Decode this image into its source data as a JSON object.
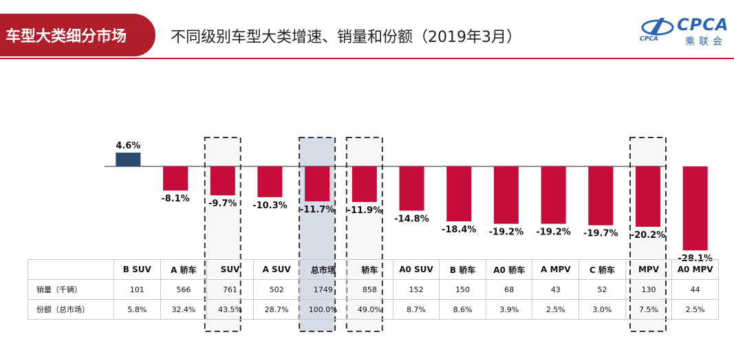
{
  "header": {
    "tag": "车型大类细分市场",
    "title": "不同级别车型大类增速、销量和份额（2019年3月）"
  },
  "logo": {
    "text_top": "CPCA",
    "text_bottom": "乘联会",
    "text_small": "CPCA"
  },
  "colors": {
    "brand_red": "#b01e2a",
    "positive_bar": "#2c4a6e",
    "negative_bar": "#c50c3a",
    "highlight_fill": "#d3d9e6"
  },
  "table": {
    "row_labels": [
      "销量（千辆）",
      "份额（总市场）"
    ]
  },
  "chart_data": {
    "type": "bar",
    "categories": [
      "B SUV",
      "A 轿车",
      "SUV",
      "A SUV",
      "总市场",
      "轿车",
      "A0 SUV",
      "B 轿车",
      "A0 轿车",
      "A MPV",
      "C 轿车",
      "MPV",
      "A0 MPV"
    ],
    "series": [
      {
        "values": [
          4.6,
          -8.1,
          -9.7,
          -10.3,
          -11.7,
          -11.9,
          -14.8,
          -18.4,
          -19.2,
          -19.2,
          -19.7,
          -20.2,
          -28.1
        ]
      }
    ],
    "value_labels": [
      "4.6%",
      "-8.1%",
      "-9.7%",
      "-10.3%",
      "-11.7%",
      "-11.9%",
      "-14.8%",
      "-18.4%",
      "-19.2%",
      "-19.2%",
      "-19.7%",
      "-20.2%",
      "-28.1%"
    ],
    "sales": [
      "101",
      "566",
      "761",
      "502",
      "1749",
      "858",
      "152",
      "150",
      "68",
      "43",
      "52",
      "130",
      "44"
    ],
    "share": [
      "5.8%",
      "32.4%",
      "43.5%",
      "28.7%",
      "100.0%",
      "49.0%",
      "8.7%",
      "8.6%",
      "3.9%",
      "2.5%",
      "3.0%",
      "7.5%",
      "2.5%"
    ],
    "highlighted": [
      "SUV",
      "总市场",
      "轿车",
      "MPV"
    ],
    "filled_highlight": "总市场",
    "ylim": [
      -30,
      7
    ],
    "grid": false,
    "legend": "none"
  }
}
